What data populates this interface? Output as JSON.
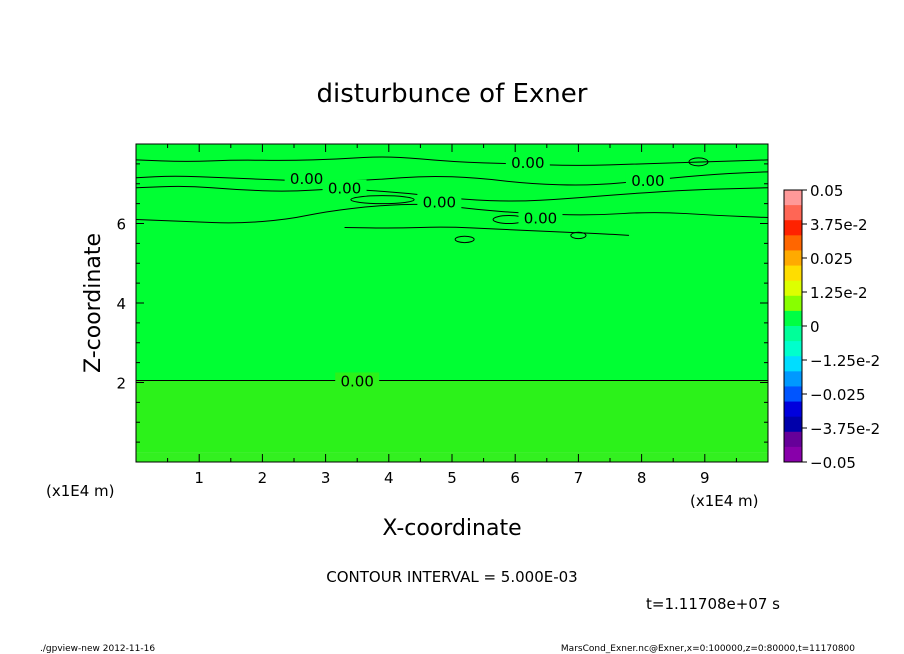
{
  "chart_data": {
    "type": "heatmap",
    "title": "disturbunce of Exner",
    "xlabel": "X-coordinate",
    "ylabel": "Z-coordinate",
    "x_unit_label": "(x1E4 m)",
    "y_unit_label": "(x1E4 m)",
    "xlim": [
      0,
      10
    ],
    "ylim": [
      0,
      8
    ],
    "x_ticks": [
      "1",
      "2",
      "3",
      "4",
      "5",
      "6",
      "7",
      "8",
      "9"
    ],
    "y_ticks": [
      "2",
      "4",
      "6"
    ],
    "contour_interval_text": "CONTOUR INTERVAL = 5.000E-03",
    "time_text": "t=1.11708e+07 s",
    "colorbar": {
      "labels": [
        "0.05",
        "3.75e-2",
        "0.025",
        "1.25e-2",
        "0",
        "−1.25e-2",
        "−0.025",
        "−3.75e-2",
        "−0.05"
      ],
      "colors_top_to_bottom": [
        "#ff9999",
        "#ff6655",
        "#ff2200",
        "#ff6600",
        "#ffaa00",
        "#ffdd00",
        "#ddff00",
        "#88ff00",
        "#00ff44",
        "#00ff99",
        "#00ffcc",
        "#00ddff",
        "#0099ff",
        "#0055ff",
        "#0000dd",
        "#0000aa",
        "#660099",
        "#8800aa"
      ]
    },
    "field": [
      {
        "z_range": [
          0,
          0.25
        ],
        "value": 0.003,
        "color": "#33f020"
      },
      {
        "z_range": [
          0.25,
          2.05
        ],
        "value": 0.002,
        "color": "#2cf21a"
      },
      {
        "z_range": [
          2.05,
          8
        ],
        "value": 0.0,
        "color": "#00ff33"
      }
    ],
    "contour_labels": [
      {
        "x": 3.5,
        "z": 2.05,
        "text": "0.00"
      },
      {
        "x": 6.2,
        "z": 7.55,
        "text": "0.00"
      },
      {
        "x": 2.7,
        "z": 7.15,
        "text": "0.00"
      },
      {
        "x": 3.3,
        "z": 6.9,
        "text": "0.00"
      },
      {
        "x": 8.1,
        "z": 7.1,
        "text": "0.00"
      },
      {
        "x": 4.8,
        "z": 6.55,
        "text": "0.00"
      },
      {
        "x": 6.4,
        "z": 6.15,
        "text": "0.00"
      }
    ]
  },
  "footer": {
    "left": "./gpview-new  2012-11-16",
    "right": "MarsCond_Exner.nc@Exner,x=0:100000,z=0:80000,t=11170800"
  }
}
